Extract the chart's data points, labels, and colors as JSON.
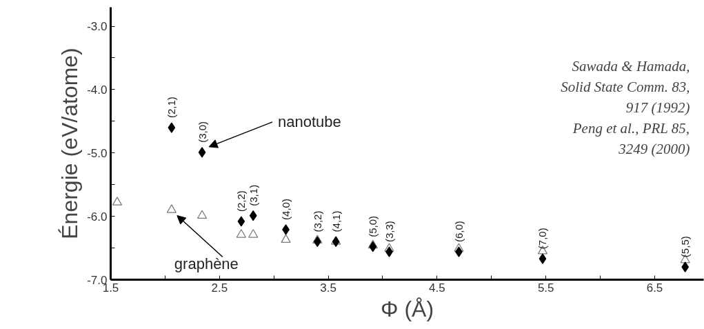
{
  "chart_data": {
    "type": "scatter",
    "xlabel": "Φ (Å)",
    "ylabel": "Énergie (eV/atome)",
    "xlim": [
      1.5,
      6.95
    ],
    "ylim": [
      -7.0,
      -2.7
    ],
    "xticks": [
      1.5,
      {
        "value": 2.0,
        "label": null
      },
      2.5,
      {
        "value": 3.0,
        "label": null
      },
      3.5,
      {
        "value": 4.0,
        "label": null
      },
      4.5,
      {
        "value": 5.0,
        "label": null
      },
      5.5,
      {
        "value": 6.0,
        "label": null
      },
      6.5
    ],
    "yticks": [
      {
        "value": -7.0,
        "label": "-7.0"
      },
      {
        "value": -6.5,
        "label": null
      },
      {
        "value": -6.0,
        "label": "-6.0"
      },
      {
        "value": -5.5,
        "label": null
      },
      {
        "value": -5.0,
        "label": "-5.0"
      },
      {
        "value": -4.5,
        "label": null
      },
      {
        "value": -4.0,
        "label": "-4.0"
      },
      {
        "value": -3.5,
        "label": null
      },
      {
        "value": -3.0,
        "label": "-3.0"
      }
    ],
    "grid": false,
    "legend": false,
    "series": [
      {
        "name": "graphène",
        "color": "#7a7a7a",
        "marker": "triangle",
        "x": [
          1.56,
          2.06,
          2.34,
          2.7,
          2.81,
          3.11,
          3.4,
          3.57,
          3.91,
          4.06,
          4.7,
          5.47,
          6.78
        ],
        "values": [
          -5.78,
          -5.9,
          -5.99,
          -6.29,
          -6.29,
          -6.37,
          -6.38,
          -6.4,
          -6.46,
          -6.51,
          -6.51,
          -6.55,
          -6.69
        ]
      },
      {
        "name": "nanotube",
        "color": "#000000",
        "marker": "diamond",
        "x": [
          2.06,
          2.34,
          2.7,
          2.81,
          3.11,
          3.4,
          3.57,
          3.91,
          4.06,
          4.7,
          5.47,
          6.78
        ],
        "values": [
          -4.6,
          -4.99,
          -6.08,
          -5.99,
          -6.21,
          -6.4,
          -6.4,
          -6.48,
          -6.56,
          -6.56,
          -6.67,
          -6.8
        ]
      }
    ],
    "annotations": [
      "Sawada & Hamada,\nSolid State Comm. 83,\n917 (1992)",
      "Peng et al., PRL 85,\n3249 (2000)",
      {
        "text": "(2,1)",
        "x": 2.06,
        "y": -4.6
      },
      {
        "text": "(3,0)",
        "x": 2.34,
        "y": -4.99
      },
      {
        "text": "(2,2)",
        "x": 2.7,
        "y": -6.08
      },
      {
        "text": "(3,1)",
        "x": 2.81,
        "y": -5.99
      },
      {
        "text": "(4,0)",
        "x": 3.11,
        "y": -6.21
      },
      {
        "text": "(3,2)",
        "x": 3.4,
        "y": -6.4
      },
      {
        "text": "(4,1)",
        "x": 3.57,
        "y": -6.4
      },
      {
        "text": "(5,0)",
        "x": 3.91,
        "y": -6.48
      },
      {
        "text": "(3,3)",
        "x": 4.06,
        "y": -6.56
      },
      {
        "text": "(6,0)",
        "x": 4.7,
        "y": -6.56
      },
      {
        "text": "(7,0)",
        "x": 5.47,
        "y": -6.67
      },
      {
        "text": "(5,5)",
        "x": 6.78,
        "y": -6.8
      }
    ]
  }
}
